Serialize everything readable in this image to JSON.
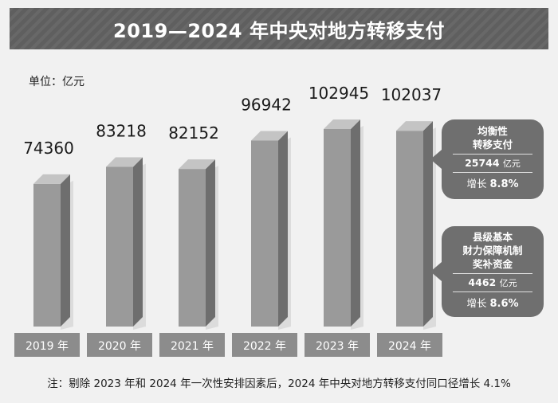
{
  "header": {
    "title": "2019—2024 年中央对地方转移支付"
  },
  "unit_label": "单位：亿元",
  "chart_data": {
    "type": "bar",
    "title": "2019—2024 年中央对地方转移支付",
    "unit": "亿元",
    "categories": [
      "2019 年",
      "2020 年",
      "2021 年",
      "2022 年",
      "2023 年",
      "2024 年"
    ],
    "values": [
      74360,
      83218,
      82152,
      96942,
      102945,
      102037
    ],
    "ylim": [
      0,
      110000
    ],
    "xlabel": "",
    "ylabel": ""
  },
  "callouts": [
    {
      "name_lines": [
        "均衡性",
        "转移支付"
      ],
      "amount": "25744",
      "amount_unit": "亿元",
      "growth_prefix": "增长",
      "growth_value": "8.8%"
    },
    {
      "name_lines": [
        "县级基本",
        "财力保障机制",
        "奖补资金"
      ],
      "amount": "4462",
      "amount_unit": "亿元",
      "growth_prefix": "增长",
      "growth_value": "8.6%"
    }
  ],
  "footnote": "注：剔除 2023 年和 2024 年一次性安排因素后，2024 年中央对地方转移支付同口径增长 4.1%",
  "colors": {
    "banner": "#5f5f5f",
    "bar_front": "#9a9a9a",
    "bar_side": "#6e6e6e",
    "bar_top": "#c4c4c4",
    "label_box": "#8c8c8c",
    "callout": "#6f6f6f"
  }
}
